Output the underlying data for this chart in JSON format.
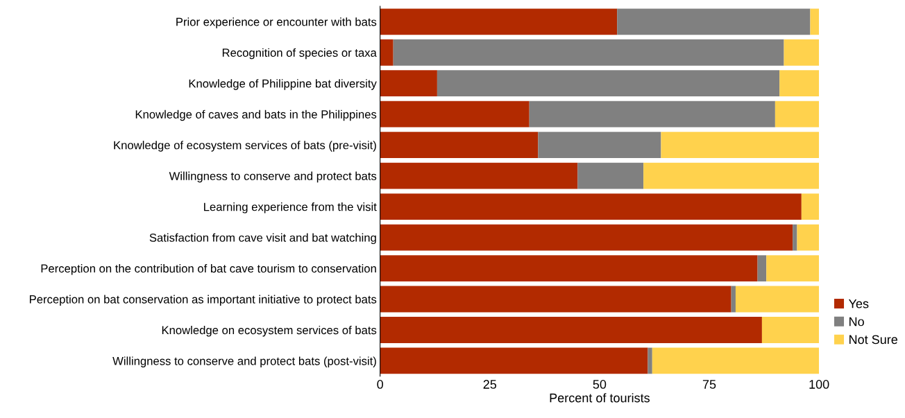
{
  "chart_data": {
    "type": "bar",
    "orientation": "horizontal",
    "stacked": true,
    "xlabel": "Percent of tourists",
    "categories": [
      "Prior experience or encounter with bats",
      "Recognition of species or taxa",
      "Knowledge of Philippine bat diversity",
      "Knowledge of caves and bats in the Philippines",
      "Knowledge of ecosystem services of bats (pre-visit)",
      "Willingness to conserve and protect bats",
      "Learning experience from the visit",
      "Satisfaction from cave visit and bat watching",
      "Perception on the contribution of bat cave tourism to conservation",
      "Perception on bat conservation as important initiative to protect bats",
      "Knowledge on ecosystem services of bats",
      "Willingness to conserve and protect bats (post-visit)"
    ],
    "series": [
      {
        "name": "Yes",
        "color": "#b22a00",
        "values": [
          54,
          3,
          13,
          34,
          36,
          45,
          96,
          94,
          86,
          80,
          87,
          61
        ]
      },
      {
        "name": "No",
        "color": "#808080",
        "values": [
          44,
          89,
          78,
          56,
          28,
          15,
          0,
          1,
          2,
          1,
          0,
          1
        ]
      },
      {
        "name": "Not Sure",
        "color": "#ffd24d",
        "values": [
          2,
          8,
          9,
          10,
          36,
          40,
          4,
          5,
          12,
          19,
          13,
          38
        ]
      }
    ],
    "xlim": [
      0,
      100
    ],
    "xticks": [
      0,
      25,
      50,
      75,
      100
    ],
    "grid": false,
    "legend": "bottom right"
  }
}
